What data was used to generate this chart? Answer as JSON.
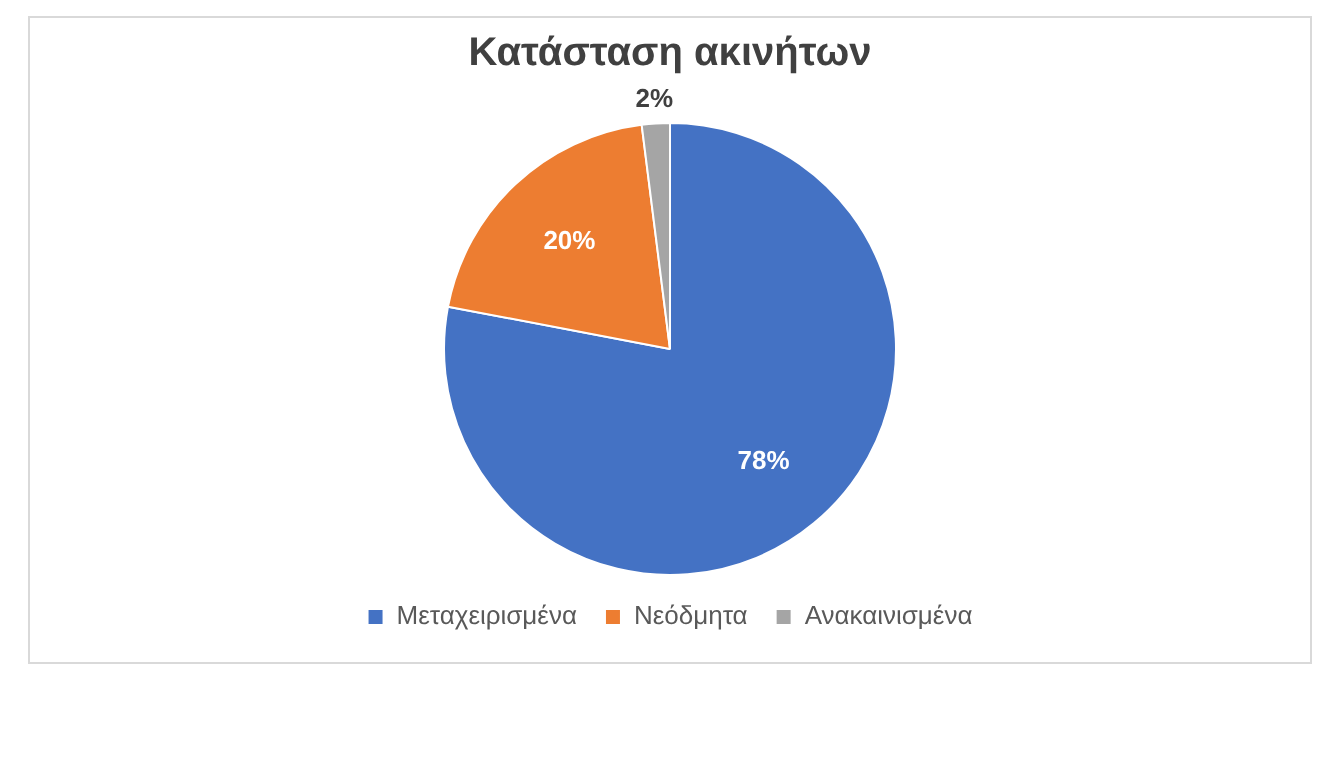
{
  "chart_data": {
    "type": "pie",
    "title": "Κατάσταση ακινήτων",
    "categories": [
      "Μεταχειρισμένα",
      "Νεόδμητα",
      "Ανακαινισμένα"
    ],
    "values": [
      78,
      20,
      2
    ],
    "colors": [
      "#4472c4",
      "#ed7d31",
      "#a5a5a5"
    ],
    "value_labels": [
      "78%",
      "20%",
      "2%"
    ],
    "legend": "bottom"
  }
}
